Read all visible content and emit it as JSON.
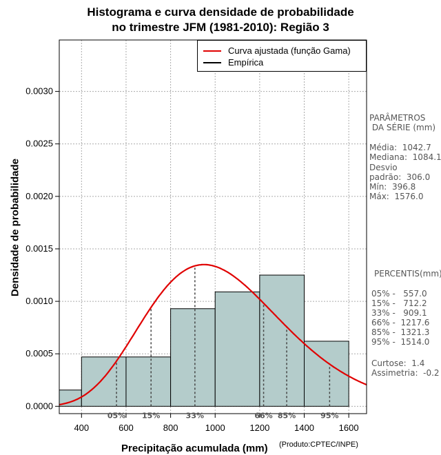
{
  "title_line1": "Histograma e curva densidade de probabilidade",
  "title_line2": "no trimestre JFM (1981-2010): Região 3",
  "legend": {
    "fitted": "Curva ajustada (função Gama)",
    "empirical": "Empírica",
    "fitted_color": "#e00000",
    "empirical_color": "#000000"
  },
  "params_title1": "PARÂMETROS",
  "params_title2": " DA SÉRIE (mm)",
  "params": [
    "Média:  1042.7",
    "Mediana:  1084.1",
    "Desvio",
    "padrão:  306.0",
    "Mín:  396.8",
    "Máx:  1576.0"
  ],
  "percentis_title": "PERCENTIS(mm)",
  "percentis": [
    "05% -   557.0",
    "15% -   712.2",
    "33% -   909.1",
    "66% -  1217.6",
    "85% -  1321.3",
    "95% -  1514.0"
  ],
  "stats": [
    "Curtose:  1.4",
    "Assimetria:  -0.2"
  ],
  "xlabel": "Precipitação acumulada (mm)",
  "credit": "(Produto:CPTEC/INPE)",
  "ylabel": "Densidade de probabilidade",
  "chart_data": {
    "type": "bar",
    "title": "Histograma e curva densidade de probabilidade no trimestre JFM (1981-2010): Região 3",
    "xlabel": "Precipitação acumulada (mm)",
    "ylabel": "Densidade de probabilidade",
    "xlim": [
      300,
      1680
    ],
    "ylim": [
      -7e-05,
      0.00349
    ],
    "xticks": [
      400,
      600,
      800,
      1000,
      1200,
      1400,
      1600
    ],
    "yticks": [
      0.0,
      0.0005,
      0.001,
      0.0015,
      0.002,
      0.0025,
      0.003
    ],
    "ytick_labels": [
      "0.0000",
      "0.0005",
      "0.0010",
      "0.0015",
      "0.0020",
      "0.0025",
      "0.0030"
    ],
    "bins": [
      {
        "x0": 300,
        "x1": 400,
        "density": 0.000155
      },
      {
        "x0": 400,
        "x1": 600,
        "density": 0.00047
      },
      {
        "x0": 600,
        "x1": 800,
        "density": 0.00047
      },
      {
        "x0": 800,
        "x1": 1000,
        "density": 0.00093
      },
      {
        "x0": 1000,
        "x1": 1200,
        "density": 0.00109
      },
      {
        "x0": 1200,
        "x1": 1400,
        "density": 0.00125
      },
      {
        "x0": 1400,
        "x1": 1600,
        "density": 0.00062
      }
    ],
    "bar_color": "#b4cccb",
    "curve": {
      "distribution": "gamma",
      "mode": 950,
      "peak": 0.00135,
      "color": "#e00000"
    },
    "percentile_marks": [
      {
        "label": "05%",
        "x": 557.0
      },
      {
        "label": "15%",
        "x": 712.2
      },
      {
        "label": "33%",
        "x": 909.1
      },
      {
        "label": "66%",
        "x": 1217.6
      },
      {
        "label": "85%",
        "x": 1321.3
      },
      {
        "label": "95%",
        "x": 1514.0
      }
    ],
    "grid": true
  }
}
